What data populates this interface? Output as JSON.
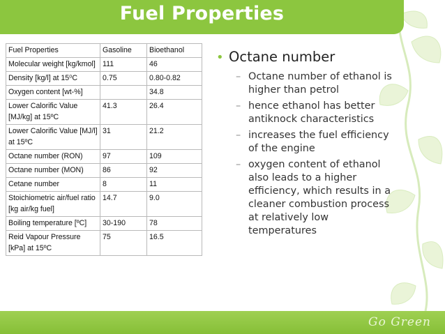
{
  "slide": {
    "title": "Fuel Properties",
    "brand": "Go Green",
    "accent_color": "#8cc63f",
    "decor_icon": "vine-leaves-icon"
  },
  "table": {
    "headers": [
      "Fuel Properties",
      "Gasoline",
      "Bioethanol"
    ],
    "rows": [
      [
        "Molecular weight [kg/kmol]",
        "111",
        "46"
      ],
      [
        "Density [kg/l] at 15⁰C",
        "0.75",
        "0.80-0.82"
      ],
      [
        "Oxygen content [wt-%]",
        "",
        "34.8"
      ],
      [
        "Lower Calorific Value [MJ/kg] at 15ºC",
        "41.3",
        "26.4"
      ],
      [
        "Lower Calorific Value [MJ/l] at 15ºC",
        "31",
        "21.2"
      ],
      [
        "Octane number (RON)",
        "97",
        "109"
      ],
      [
        "Octane number (MON)",
        "86",
        "92"
      ],
      [
        "Cetane number",
        "8",
        "11"
      ],
      [
        "Stoichiometric air/fuel ratio [kg air/kg fuel]",
        "14.7",
        "9.0"
      ],
      [
        "Boiling temperature [ºC]",
        "30-190",
        "78"
      ],
      [
        "Reid Vapour Pressure [kPa] at 15ºC",
        "75",
        "16.5"
      ]
    ]
  },
  "bullets": {
    "main": "Octane number",
    "subs": [
      "Octane number of ethanol is higher than petrol",
      "hence ethanol has better antiknock characteristics",
      "increases the fuel efficiency of the engine",
      "oxygen content of ethanol also leads to a higher efficiency, which results in a cleaner combustion process at relatively low temperatures"
    ]
  }
}
